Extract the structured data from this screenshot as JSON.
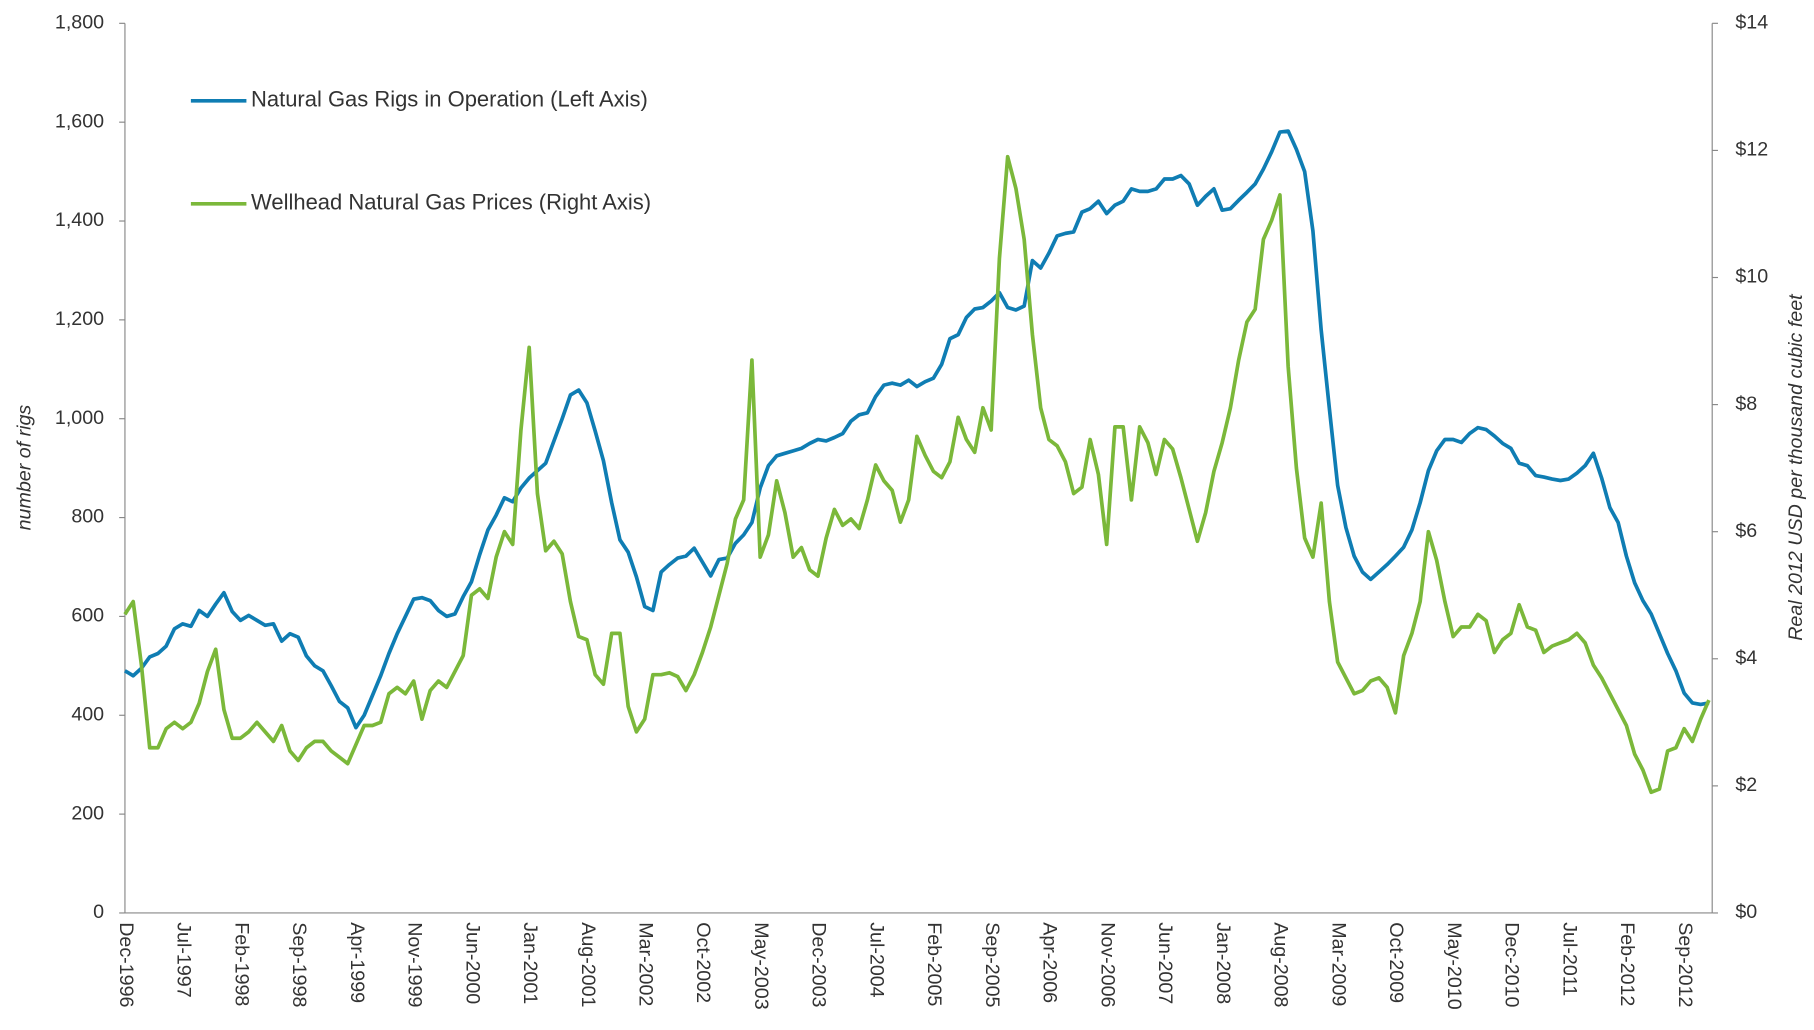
{
  "chart_data": {
    "type": "line",
    "y_label": "number of rigs",
    "y2_label": "Real 2012 USD per thousand cubic feet",
    "legend": "top-left",
    "categories": [
      "Dec-1996",
      null,
      null,
      null,
      null,
      null,
      null,
      "Jul-1997",
      null,
      null,
      null,
      null,
      null,
      null,
      "Feb-1998",
      null,
      null,
      null,
      null,
      null,
      null,
      "Sep-1998",
      null,
      null,
      null,
      null,
      null,
      null,
      "Apr-1999",
      null,
      null,
      null,
      null,
      null,
      null,
      "Nov-1999",
      null,
      null,
      null,
      null,
      null,
      null,
      "Jun-2000",
      null,
      null,
      null,
      null,
      null,
      null,
      "Jan-2001",
      null,
      null,
      null,
      null,
      null,
      null,
      "Aug-2001",
      null,
      null,
      null,
      null,
      null,
      null,
      "Mar-2002",
      null,
      null,
      null,
      null,
      null,
      null,
      "Oct-2002",
      null,
      null,
      null,
      null,
      null,
      null,
      "May-2003",
      null,
      null,
      null,
      null,
      null,
      null,
      "Dec-2003",
      null,
      null,
      null,
      null,
      null,
      null,
      "Jul-2004",
      null,
      null,
      null,
      null,
      null,
      null,
      "Feb-2005",
      null,
      null,
      null,
      null,
      null,
      null,
      "Sep-2005",
      null,
      null,
      null,
      null,
      null,
      null,
      "Apr-2006",
      null,
      null,
      null,
      null,
      null,
      null,
      "Nov-2006",
      null,
      null,
      null,
      null,
      null,
      null,
      "Jun-2007",
      null,
      null,
      null,
      null,
      null,
      null,
      "Jan-2008",
      null,
      null,
      null,
      null,
      null,
      null,
      "Aug-2008",
      null,
      null,
      null,
      null,
      null,
      null,
      "Mar-2009",
      null,
      null,
      null,
      null,
      null,
      null,
      "Oct-2009",
      null,
      null,
      null,
      null,
      null,
      null,
      "May-2010",
      null,
      null,
      null,
      null,
      null,
      null,
      "Dec-2010",
      null,
      null,
      null,
      null,
      null,
      null,
      "Jul-2011",
      null,
      null,
      null,
      null,
      null,
      null,
      "Feb-2012",
      null,
      null,
      null,
      null,
      null,
      null,
      "Sep-2012",
      null,
      null,
      null
    ],
    "series": [
      {
        "name": "Natural Gas Rigs in Operation (Left Axis)",
        "color": "#0f7db3",
        "axis": "y",
        "values": [
          490,
          480,
          495,
          518,
          525,
          540,
          575,
          585,
          580,
          612,
          600,
          625,
          648,
          610,
          592,
          602,
          592,
          582,
          585,
          550,
          565,
          558,
          520,
          500,
          490,
          460,
          428,
          415,
          375,
          400,
          440,
          480,
          525,
          565,
          600,
          635,
          638,
          632,
          612,
          600,
          605,
          640,
          670,
          725,
          775,
          805,
          840,
          832,
          860,
          880,
          895,
          910,
          955,
          1000,
          1048,
          1058,
          1032,
          975,
          915,
          830,
          755,
          730,
          680,
          620,
          612,
          690,
          705,
          718,
          722,
          738,
          710,
          682,
          715,
          718,
          748,
          765,
          790,
          860,
          905,
          925,
          930,
          935,
          940,
          950,
          958,
          955,
          962,
          970,
          995,
          1008,
          1012,
          1045,
          1068,
          1072,
          1068,
          1078,
          1065,
          1075,
          1082,
          1110,
          1162,
          1170,
          1205,
          1222,
          1225,
          1238,
          1255,
          1225,
          1220,
          1228,
          1320,
          1305,
          1335,
          1370,
          1375,
          1378,
          1418,
          1425,
          1440,
          1415,
          1432,
          1440,
          1465,
          1460,
          1460,
          1465,
          1485,
          1485,
          1492,
          1475,
          1432,
          1450,
          1465,
          1422,
          1425,
          1442,
          1458,
          1475,
          1505,
          1540,
          1580,
          1582,
          1545,
          1500,
          1380,
          1180,
          1020,
          865,
          780,
          722,
          690,
          675,
          690,
          705,
          722,
          740,
          775,
          830,
          895,
          935,
          958,
          958,
          952,
          970,
          982,
          978,
          965,
          950,
          940,
          910,
          905,
          885,
          882,
          878,
          875,
          878,
          890,
          905,
          930,
          880,
          820,
          790,
          722,
          668,
          632,
          605,
          565,
          525,
          490,
          445,
          425,
          422,
          425
        ]
      },
      {
        "name": "Wellhead Natural Gas Prices (Right Axis)",
        "color": "#7bb83a",
        "axis": "y2",
        "values": [
          4.7,
          4.9,
          3.9,
          2.6,
          2.6,
          2.9,
          3.0,
          2.9,
          3.0,
          3.3,
          3.8,
          4.15,
          3.2,
          2.75,
          2.75,
          2.85,
          3.0,
          2.85,
          2.7,
          2.95,
          2.55,
          2.4,
          2.6,
          2.7,
          2.7,
          2.55,
          2.45,
          2.35,
          2.65,
          2.95,
          2.95,
          3.0,
          3.45,
          3.55,
          3.45,
          3.65,
          3.05,
          3.5,
          3.65,
          3.55,
          3.8,
          4.05,
          5.0,
          5.1,
          4.95,
          5.6,
          6.0,
          5.8,
          7.6,
          8.9,
          6.6,
          5.7,
          5.85,
          5.65,
          4.9,
          4.35,
          4.3,
          3.75,
          3.6,
          4.4,
          4.4,
          3.25,
          2.85,
          3.05,
          3.75,
          3.75,
          3.78,
          3.72,
          3.5,
          3.75,
          4.1,
          4.5,
          5.0,
          5.5,
          6.2,
          6.5,
          8.7,
          5.6,
          5.95,
          6.8,
          6.3,
          5.6,
          5.75,
          5.4,
          5.3,
          5.9,
          6.35,
          6.1,
          6.2,
          6.05,
          6.5,
          7.05,
          6.8,
          6.65,
          6.15,
          6.5,
          7.5,
          7.2,
          6.95,
          6.85,
          7.1,
          7.8,
          7.45,
          7.25,
          7.95,
          7.6,
          10.3,
          11.9,
          11.4,
          10.6,
          9.1,
          7.95,
          7.45,
          7.35,
          7.1,
          6.6,
          6.7,
          7.45,
          6.9,
          5.8,
          7.65,
          7.65,
          6.5,
          7.65,
          7.4,
          6.9,
          7.45,
          7.3,
          6.85,
          6.35,
          5.85,
          6.3,
          6.95,
          7.4,
          7.95,
          8.7,
          9.3,
          9.5,
          10.6,
          10.9,
          11.3,
          8.6,
          7.0,
          5.9,
          5.6,
          6.45,
          4.9,
          3.95,
          3.7,
          3.45,
          3.5,
          3.65,
          3.7,
          3.55,
          3.15,
          4.05,
          4.4,
          4.9,
          6.0,
          5.55,
          4.9,
          4.35,
          4.5,
          4.5,
          4.7,
          4.6,
          4.1,
          4.3,
          4.4,
          4.85,
          4.5,
          4.45,
          4.1,
          4.2,
          4.25,
          4.3,
          4.4,
          4.25,
          3.9,
          3.7,
          3.45,
          3.2,
          2.95,
          2.5,
          2.25,
          1.9,
          1.95,
          2.55,
          2.6,
          2.9,
          2.7,
          3.05,
          3.35
        ]
      }
    ],
    "ylim": [
      0,
      1800
    ],
    "yticks": [
      0,
      200,
      400,
      600,
      800,
      {
        "value": 1000,
        "label": "1,000"
      },
      {
        "value": 1200,
        "label": "1,200"
      },
      {
        "value": 1400,
        "label": "1,400"
      },
      {
        "value": 1600,
        "label": "1,600"
      },
      {
        "value": 1800,
        "label": "1,800"
      }
    ],
    "y2lim": [
      0,
      14
    ],
    "y2ticks": [
      {
        "value": 0,
        "label": "$0"
      },
      {
        "value": 2,
        "label": "$2"
      },
      {
        "value": 4,
        "label": "$4"
      },
      {
        "value": 6,
        "label": "$6"
      },
      {
        "value": 8,
        "label": "$8"
      },
      {
        "value": 10,
        "label": "$10"
      },
      {
        "value": 12,
        "label": "$12"
      },
      {
        "value": 14,
        "label": "$14"
      }
    ],
    "grid": false
  }
}
